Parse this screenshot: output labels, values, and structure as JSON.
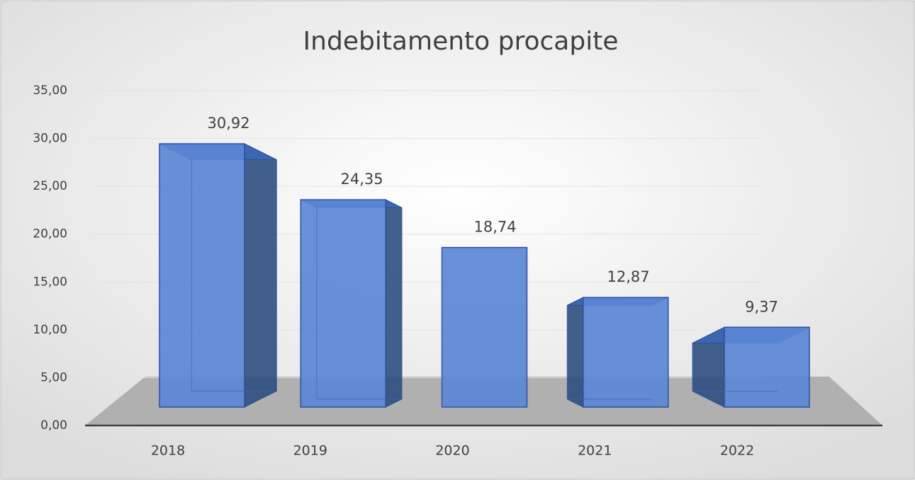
{
  "chart_data": {
    "type": "bar3d",
    "title": "Indebitamento procapite",
    "categories": [
      "2018",
      "2019",
      "2020",
      "2021",
      "2022"
    ],
    "values": [
      30.92,
      24.35,
      18.74,
      12.87,
      9.37
    ],
    "value_labels": [
      "30,92",
      "24,35",
      "18,74",
      "12,87",
      "9,37"
    ],
    "color": "#5b87d6",
    "ylim": [
      0,
      35
    ],
    "yticks": [
      {
        "value": 0,
        "label": "0,00"
      },
      {
        "value": 5,
        "label": "5,00"
      },
      {
        "value": 10,
        "label": "10,00"
      },
      {
        "value": 15,
        "label": "15,00"
      },
      {
        "value": 20,
        "label": "20,00"
      },
      {
        "value": 25,
        "label": "25,00"
      },
      {
        "value": 30,
        "label": "30,00"
      },
      {
        "value": 35,
        "label": "35,00"
      }
    ],
    "grid": true
  }
}
